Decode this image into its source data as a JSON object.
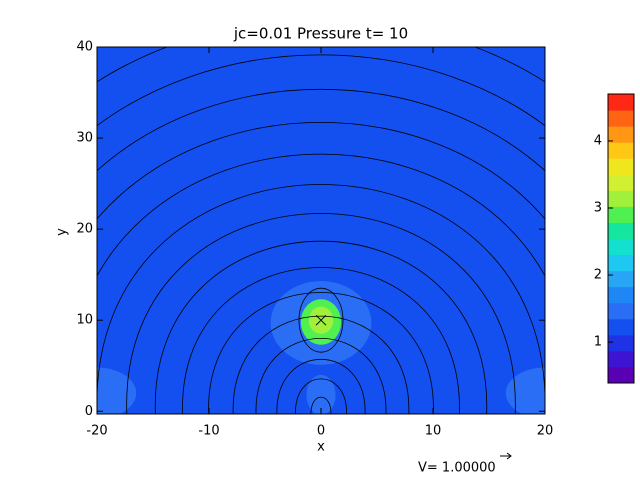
{
  "chart_data": {
    "type": "contour",
    "title": "jc=0.01 Pressure t= 10",
    "xlabel": "x",
    "ylabel": "y",
    "xlim": [
      -20,
      20
    ],
    "ylim": [
      -0.3,
      40
    ],
    "xticks": [
      -20,
      -10,
      0,
      10,
      20
    ],
    "yticks": [
      0,
      10,
      20,
      30,
      40
    ],
    "background_value": 1.23,
    "regions": [
      {
        "x": 0,
        "y": 9.7,
        "rx": 4.5,
        "ry": 4.6,
        "value": 1.47
      },
      {
        "x": 0,
        "y": 1.8,
        "rx": 1.3,
        "ry": 2.2,
        "value": 1.47
      },
      {
        "x": -20,
        "y": 2,
        "rx": 3.5,
        "ry": 2.8,
        "value": 1.47
      },
      {
        "x": 20,
        "y": 2,
        "rx": 3.5,
        "ry": 2.8,
        "value": 1.47
      },
      {
        "x": 0,
        "y": 9.8,
        "rx": 1.8,
        "ry": 2.5,
        "value": 2.9
      },
      {
        "x": 0,
        "y": 10,
        "rx": 1.1,
        "ry": 1.5,
        "value": 3.2
      }
    ],
    "center": [
      0,
      10
    ],
    "colorbar": {
      "clim": [
        0.39,
        4.7
      ],
      "ticks": [
        1,
        2,
        3,
        4
      ],
      "colors": [
        "#5a00b4",
        "#3c14d2",
        "#2032e6",
        "#1450f0",
        "#2a6ef5",
        "#1e86f5",
        "#28a6f5",
        "#1ec8f0",
        "#14e0d0",
        "#14e6a0",
        "#50f050",
        "#a0f03c",
        "#d2f032",
        "#f0e61e",
        "#ffc814",
        "#ff9614",
        "#ff6414",
        "#ff2814"
      ]
    },
    "vector_label": "V= 1.00000"
  }
}
